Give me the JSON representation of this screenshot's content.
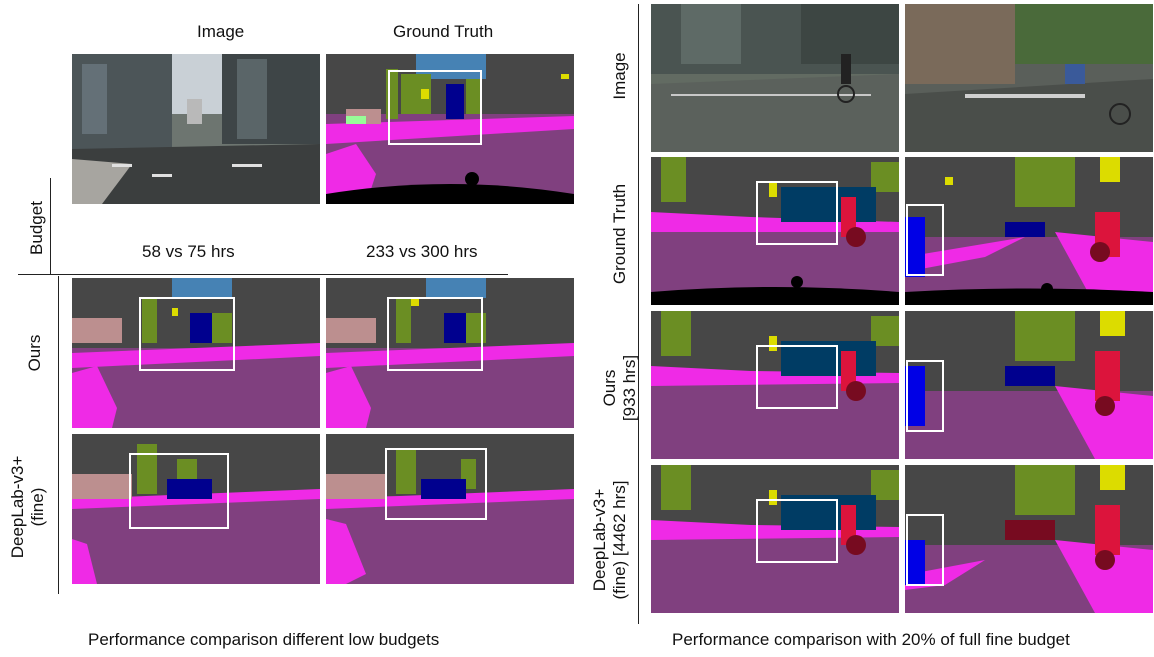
{
  "left": {
    "col_headers": [
      "Image",
      "Ground Truth"
    ],
    "budget_label": "Budget",
    "budget_values": [
      "58 vs 75 hrs",
      "233 vs 300 hrs"
    ],
    "row_labels": [
      "Ours",
      "DeepLab-v3+\n(fine)"
    ],
    "caption": "Performance comparison different low budgets"
  },
  "right": {
    "row_labels": [
      "Image",
      "Ground Truth",
      "Ours\n[933 hrs]",
      "DeepLab-v3+\n(fine) [4462 hrs]"
    ],
    "caption": "Performance comparison with 20% of full fine budget"
  },
  "colors": {
    "road": "#80407f",
    "sidewalk": "#ef2ae6",
    "building": "#474747",
    "vegetation": "#6b8e23",
    "sky": "#4682b4",
    "car": "#00008e",
    "bus": "#003c64",
    "person": "#dc143c",
    "bicycle": "#770b20",
    "traffic_sign": "#dcdc00",
    "pole": "#999999",
    "terrain": "#98fb98",
    "wall": "#bc8f8f"
  }
}
